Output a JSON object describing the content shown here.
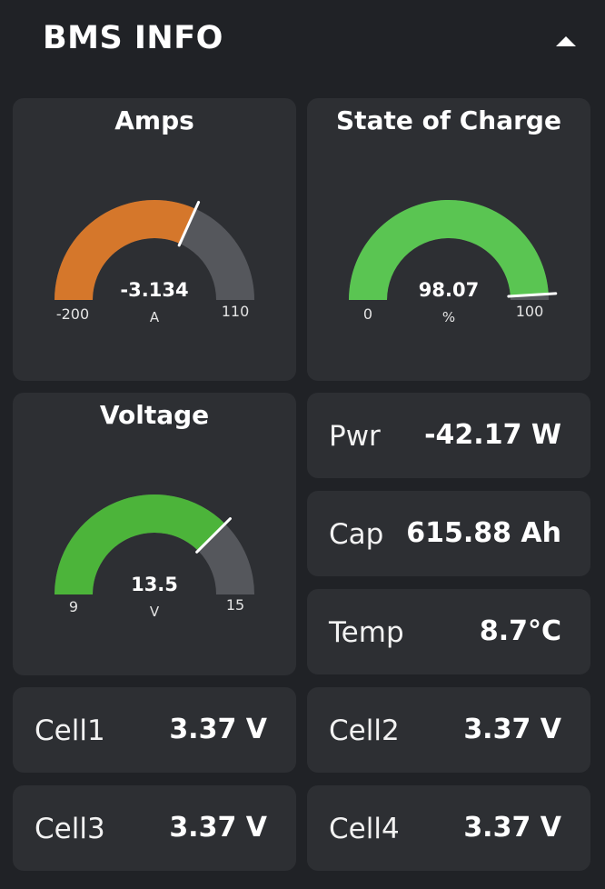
{
  "header": {
    "title": "BMS INFO",
    "collapse_icon": "chevron-up-icon"
  },
  "colors": {
    "background": "#202226",
    "card": "#2d2f33",
    "track": "#55575c",
    "amps_fill": "#d5772b",
    "soc_fill": "#5ac552",
    "voltage_fill": "#4cb43a"
  },
  "gauges": {
    "amps": {
      "title": "Amps",
      "value": "-3.134",
      "unit": "A",
      "min": "-200",
      "max": "110",
      "level": -3.134,
      "range": [
        -200,
        110
      ]
    },
    "soc": {
      "title": "State of Charge",
      "value": "98.07",
      "unit": "%",
      "min": "0",
      "max": "100",
      "level": 98.07,
      "range": [
        0,
        100
      ]
    },
    "voltage": {
      "title": "Voltage",
      "value": "13.5",
      "unit": "V",
      "min": "9",
      "max": "15",
      "level": 13.5,
      "range": [
        9,
        15
      ]
    }
  },
  "stats": {
    "power": {
      "label": "Pwr",
      "value": "-42.17 W"
    },
    "capacity": {
      "label": "Cap",
      "value": "615.88 Ah"
    },
    "temp": {
      "label": "Temp",
      "value": "8.7°C"
    }
  },
  "cells": [
    {
      "label": "Cell1",
      "value": "3.37 V"
    },
    {
      "label": "Cell2",
      "value": "3.37 V"
    },
    {
      "label": "Cell3",
      "value": "3.37 V"
    },
    {
      "label": "Cell4",
      "value": "3.37 V"
    }
  ]
}
